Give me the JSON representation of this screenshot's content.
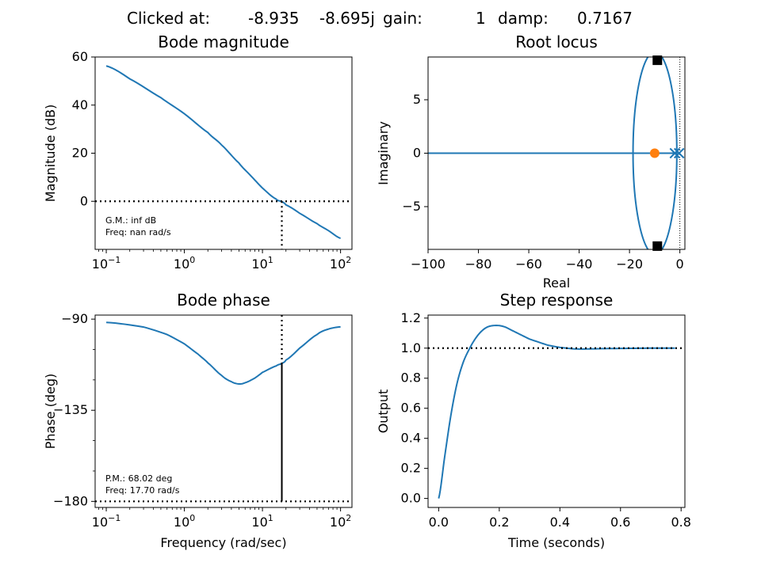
{
  "header": {
    "clicked_label": "Clicked at:",
    "clicked_value": "-8.935    -8.695j",
    "gain_label": "gain:",
    "gain_value": "1",
    "damp_label": "damp:",
    "damp_value": "0.7167"
  },
  "colors": {
    "line": "#1f77b4",
    "zero": "#ff7f0e",
    "marker": "#000000"
  },
  "chart_data": [
    {
      "id": "bode_mag",
      "type": "line",
      "title": "Bode magnitude",
      "xlabel": "",
      "ylabel": "Magnitude (dB)",
      "xscale": "log",
      "xlim": [
        0.072,
        140
      ],
      "ylim": [
        -20,
        60
      ],
      "xticks": [
        0.1,
        1,
        10,
        100
      ],
      "xtick_labels": [
        [
          "10",
          "−1"
        ],
        [
          "10",
          "0"
        ],
        [
          "10",
          "1"
        ],
        [
          "10",
          "2"
        ]
      ],
      "yticks": [
        0,
        20,
        40,
        60
      ],
      "ytick_labels": [
        "0",
        "20",
        "40",
        "60"
      ],
      "series": [
        {
          "x": [
            0.1,
            0.2,
            0.5,
            1,
            2,
            3,
            5,
            7,
            10,
            15,
            17.7,
            20,
            30,
            50,
            70,
            100
          ],
          "y": [
            56.3,
            50.9,
            43.1,
            36.4,
            28.6,
            23.4,
            15.9,
            10.8,
            5.5,
            0.9,
            -0.1,
            -1.5,
            -5.0,
            -9.3,
            -12.2,
            -15.4
          ]
        }
      ],
      "hlines": [
        0
      ],
      "vlines": [
        {
          "x": 17.7,
          "from": -20,
          "to": 0
        }
      ],
      "notes": [
        "G.M.: inf dB",
        "Freq: nan rad/s"
      ]
    },
    {
      "id": "root_locus",
      "type": "line",
      "title": "Root locus",
      "xlabel": "Real",
      "ylabel": "Imaginary",
      "xlim": [
        -100,
        2
      ],
      "ylim": [
        -9,
        9
      ],
      "xticks": [
        -100,
        -80,
        -60,
        -40,
        -20,
        0
      ],
      "xtick_labels": [
        "−100",
        "−80",
        "−60",
        "−40",
        "−20",
        "0"
      ],
      "yticks": [
        -5,
        0,
        5
      ],
      "ytick_labels": [
        "−5",
        "0",
        "5"
      ],
      "locus_line": {
        "x": [
          -100,
          -1
        ],
        "y": [
          0,
          0
        ]
      },
      "locus_ellipse": {
        "cx": -9.9,
        "cy": 0,
        "rx": 8.7,
        "ry": 9.5
      },
      "poles": [
        {
          "re": -2,
          "im": 0
        },
        {
          "re": -0.3,
          "im": 0
        }
      ],
      "zeros": [
        {
          "re": -10,
          "im": 0
        }
      ],
      "selected": [
        {
          "re": -8.935,
          "im": 8.695
        },
        {
          "re": -8.935,
          "im": -8.695
        }
      ],
      "vlines": [
        0
      ]
    },
    {
      "id": "bode_phase",
      "type": "line",
      "title": "Bode phase",
      "xlabel": "Frequency (rad/sec)",
      "ylabel": "Phase (deg)",
      "xscale": "log",
      "xlim": [
        0.072,
        140
      ],
      "ylim": [
        -183,
        -88
      ],
      "xticks": [
        0.1,
        1,
        10,
        100
      ],
      "xtick_labels": [
        [
          "10",
          "−1"
        ],
        [
          "10",
          "0"
        ],
        [
          "10",
          "1"
        ],
        [
          "10",
          "2"
        ]
      ],
      "yticks": [
        -90,
        -135,
        -180
      ],
      "ytick_labels": [
        "−90",
        "−135",
        "−180"
      ],
      "minor_yticks": [
        -105,
        -120,
        -150,
        -165
      ],
      "series": [
        {
          "x": [
            0.1,
            0.3,
            0.6,
            1,
            1.5,
            2,
            3,
            4,
            5,
            6,
            8,
            10,
            15,
            17.7,
            20,
            30,
            50,
            70,
            100
          ],
          "y": [
            -91.6,
            -93.9,
            -97.6,
            -102.2,
            -107.3,
            -111.6,
            -117.8,
            -120.9,
            -122.0,
            -121.4,
            -119.1,
            -116.3,
            -113.1,
            -111.9,
            -110.2,
            -104.3,
            -97.6,
            -94.9,
            -93.8
          ]
        }
      ],
      "hlines": [
        -180
      ],
      "vlines": [
        {
          "x": 17.7,
          "from": -111.98,
          "to": -88,
          "style": "dotted"
        },
        {
          "x": 17.7,
          "from": -180,
          "to": -111.98,
          "style": "solid"
        }
      ],
      "notes": [
        "P.M.: 68.02 deg",
        "Freq: 17.70 rad/s"
      ]
    },
    {
      "id": "step",
      "type": "line",
      "title": "Step response",
      "xlabel": "Time (seconds)",
      "ylabel": "Output",
      "xlim": [
        -0.035,
        0.8125
      ],
      "ylim": [
        -0.06,
        1.22
      ],
      "xticks": [
        0,
        0.2,
        0.4,
        0.6,
        0.8
      ],
      "xtick_labels": [
        "0.0",
        "0.2",
        "0.4",
        "0.6",
        "0.8"
      ],
      "yticks": [
        0,
        0.2,
        0.4,
        0.6,
        0.8,
        1.0,
        1.2
      ],
      "ytick_labels": [
        "0.0",
        "0.2",
        "0.4",
        "0.6",
        "0.8",
        "1.0",
        "1.2"
      ],
      "series": [
        {
          "x": [
            0,
            0.02,
            0.04,
            0.06,
            0.08,
            0.1,
            0.12,
            0.14,
            0.16,
            0.18,
            0.2,
            0.22,
            0.24,
            0.26,
            0.28,
            0.3,
            0.33,
            0.36,
            0.4,
            0.45,
            0.5,
            0.55,
            0.6,
            0.65,
            0.7,
            0.75,
            0.78
          ],
          "y": [
            0.0,
            0.28,
            0.55,
            0.76,
            0.9,
            0.99,
            1.06,
            1.11,
            1.14,
            1.15,
            1.15,
            1.14,
            1.12,
            1.1,
            1.08,
            1.06,
            1.04,
            1.02,
            1.005,
            0.995,
            0.995,
            0.997,
            0.998,
            0.999,
            1.0,
            1.0,
            1.0
          ]
        }
      ],
      "hlines": [
        1.0
      ]
    }
  ]
}
